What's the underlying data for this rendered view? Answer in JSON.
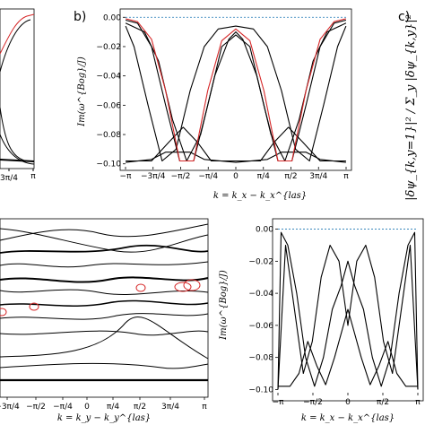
{
  "panels": {
    "b": {
      "label": "b)",
      "ylabel": "Im(ω^{Bog}/J)",
      "xlabel": "k = k_x − k_x^{las}",
      "xticks": [
        "−π",
        "−3π/4",
        "−π/2",
        "−π/4",
        "0",
        "π/4",
        "π/2",
        "3π/4",
        "π"
      ],
      "yticks": [
        "0.00",
        "−0.02",
        "−0.04",
        "−0.06",
        "−0.08",
        "−0.10"
      ]
    },
    "c": {
      "label": "c)",
      "ylabel": "|δψ_{k,y=1}|² / Σ_y |δψ_{k,y}|²"
    },
    "a_partial": {
      "xticks": [
        "3π/4",
        "π"
      ]
    },
    "d": {
      "xlabel": "k = k_y − k_y^{las}",
      "xticks": [
        "−3π/4",
        "−π/2",
        "−π/4",
        "0",
        "π/4",
        "π/2",
        "3π/4",
        "π"
      ]
    },
    "e": {
      "ylabel": "Im(ω^{Bog}/J)",
      "xlabel": "k = k_x − k_x^{las}",
      "xticks": [
        "−π",
        "−π/2",
        "0",
        "π/2",
        "π"
      ],
      "yticks": [
        "0.00",
        "−0.02",
        "−0.04",
        "−0.06",
        "−0.08",
        "−0.10"
      ]
    }
  },
  "chart_data": [
    {
      "type": "line",
      "panel": "b",
      "xlim": [
        -3.1416,
        3.1416
      ],
      "ylim": [
        -0.102,
        0.002
      ],
      "reference_line": 0,
      "series": [
        {
          "color": "#000000",
          "x": [
            -3.14,
            -2.8,
            -2.4,
            -2.0,
            -1.6,
            -1.2,
            -0.8,
            -0.4,
            0,
            0.4,
            0.8,
            1.2,
            1.6,
            2.0,
            2.4,
            2.8,
            3.14
          ],
          "y": [
            -0.002,
            -0.004,
            -0.02,
            -0.06,
            -0.098,
            -0.098,
            -0.06,
            -0.02,
            -0.012,
            -0.02,
            -0.06,
            -0.098,
            -0.098,
            -0.06,
            -0.02,
            -0.004,
            -0.002
          ]
        },
        {
          "color": "#000000",
          "x": [
            -3.14,
            -2.6,
            -2.2,
            -1.8,
            -1.4,
            -1.0,
            -0.6,
            -0.2,
            0,
            0.2,
            0.6,
            1.0,
            1.4,
            1.8,
            2.2,
            2.6,
            3.14
          ],
          "y": [
            -0.004,
            -0.01,
            -0.03,
            -0.07,
            -0.098,
            -0.08,
            -0.04,
            -0.015,
            -0.01,
            -0.015,
            -0.04,
            -0.08,
            -0.098,
            -0.07,
            -0.03,
            -0.01,
            -0.004
          ]
        },
        {
          "color": "#000000",
          "x": [
            -3.14,
            -2.9,
            -2.5,
            -2.1,
            -1.7,
            -1.3,
            -0.9,
            -0.5,
            0,
            0.5,
            0.9,
            1.3,
            1.7,
            2.1,
            2.5,
            2.9,
            3.14
          ],
          "y": [
            -0.006,
            -0.02,
            -0.06,
            -0.098,
            -0.09,
            -0.05,
            -0.02,
            -0.008,
            -0.006,
            -0.008,
            -0.02,
            -0.05,
            -0.09,
            -0.098,
            -0.06,
            -0.02,
            -0.006
          ]
        },
        {
          "color": "#000000",
          "x": [
            -3.14,
            -2.4,
            -1.9,
            -1.5,
            -1.1,
            -0.7,
            0,
            0.7,
            1.1,
            1.5,
            1.9,
            2.4,
            3.14
          ],
          "y": [
            -0.098,
            -0.098,
            -0.085,
            -0.075,
            -0.085,
            -0.098,
            -0.098,
            -0.098,
            -0.085,
            -0.075,
            -0.085,
            -0.098,
            -0.098
          ]
        },
        {
          "color": "#000000",
          "x": [
            -3.14,
            -2.4,
            -2.0,
            -1.3,
            -0.9,
            0,
            0.9,
            1.3,
            2.0,
            2.4,
            3.14
          ],
          "y": [
            -0.099,
            -0.097,
            -0.092,
            -0.092,
            -0.097,
            -0.099,
            -0.097,
            -0.092,
            -0.092,
            -0.097,
            -0.099
          ]
        },
        {
          "color": "#d62728",
          "x": [
            -3.14,
            -2.8,
            -2.4,
            -2.0,
            -1.6,
            -1.2,
            -0.8,
            -0.4,
            -0.1,
            0,
            0.1,
            0.4,
            0.8,
            1.2,
            1.6,
            2.0,
            2.4,
            2.8,
            3.14
          ],
          "y": [
            -0.001,
            -0.003,
            -0.015,
            -0.05,
            -0.098,
            -0.098,
            -0.05,
            -0.016,
            -0.01,
            -0.008,
            -0.01,
            -0.016,
            -0.05,
            -0.098,
            -0.098,
            -0.05,
            -0.015,
            -0.003,
            -0.001
          ]
        }
      ]
    },
    {
      "type": "line",
      "panel": "e",
      "xlim": [
        -3.1416,
        3.1416
      ],
      "ylim": [
        -0.102,
        0.002
      ],
      "reference_line": 0,
      "series": [
        {
          "color": "#000000",
          "x": [
            -3.14,
            -3.0,
            -2.7,
            -2.3,
            -1.9,
            -1.5,
            -1.1,
            -0.7,
            -0.3,
            0,
            0.3,
            0.7,
            1.1,
            1.5,
            1.9,
            2.3,
            2.7,
            3.0,
            3.14
          ],
          "y": [
            -0.1,
            -0.002,
            -0.01,
            -0.04,
            -0.08,
            -0.098,
            -0.08,
            -0.05,
            -0.035,
            -0.02,
            -0.035,
            -0.05,
            -0.08,
            -0.098,
            -0.08,
            -0.04,
            -0.01,
            -0.002,
            -0.1
          ]
        },
        {
          "color": "#000000",
          "x": [
            -3.14,
            -2.8,
            -2.4,
            -2.0,
            -1.6,
            -1.2,
            -0.8,
            -0.4,
            0,
            0.4,
            0.8,
            1.2,
            1.6,
            2.0,
            2.4,
            2.8,
            3.14
          ],
          "y": [
            -0.1,
            -0.01,
            -0.05,
            -0.09,
            -0.07,
            -0.03,
            -0.01,
            -0.02,
            -0.06,
            -0.02,
            -0.01,
            -0.03,
            -0.07,
            -0.09,
            -0.05,
            -0.01,
            -0.1
          ]
        },
        {
          "color": "#000000",
          "x": [
            -3.14,
            -2.6,
            -2.2,
            -1.8,
            -1.4,
            -1.0,
            -0.6,
            -0.2,
            0,
            0.2,
            0.6,
            1.0,
            1.4,
            1.8,
            2.2,
            2.6,
            3.14
          ],
          "y": [
            -0.098,
            -0.098,
            -0.09,
            -0.07,
            -0.085,
            -0.097,
            -0.08,
            -0.06,
            -0.05,
            -0.06,
            -0.08,
            -0.097,
            -0.085,
            -0.07,
            -0.09,
            -0.098,
            -0.098
          ]
        }
      ]
    }
  ]
}
